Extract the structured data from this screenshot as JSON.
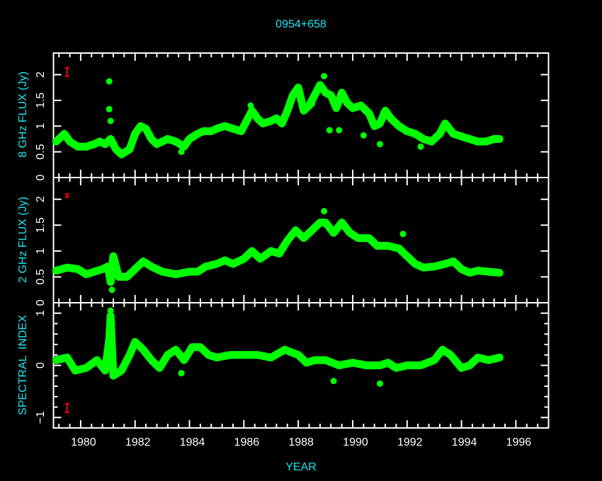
{
  "chart_data": [
    {
      "type": "scatter",
      "title": "0954+658",
      "xlabel": "",
      "ylabel": "8 GHz FLUX (Jy)",
      "xlim": [
        1979.0,
        1997.2
      ],
      "ylim": [
        0,
        2.42
      ],
      "yticks": [
        "0",
        "0.5",
        "1",
        "1.5",
        "2"
      ],
      "ytick_values": [
        0,
        0.5,
        1,
        1.5,
        2
      ],
      "grid": false,
      "marker_color": "#00ff00",
      "error_bar": {
        "x": 1979.5,
        "y": 2.05,
        "err": 0.08,
        "color": "#ff0000"
      },
      "x": [
        1979.1,
        1979.4,
        1979.6,
        1979.9,
        1980.2,
        1980.5,
        1980.7,
        1980.9,
        1981.1,
        1981.3,
        1981.5,
        1981.8,
        1982.0,
        1982.2,
        1982.4,
        1982.6,
        1982.8,
        1983.0,
        1983.2,
        1983.5,
        1983.8,
        1984.0,
        1984.3,
        1984.5,
        1984.8,
        1985.0,
        1985.3,
        1985.6,
        1985.9,
        1986.1,
        1986.3,
        1986.5,
        1986.7,
        1987.0,
        1987.2,
        1987.4,
        1987.6,
        1987.8,
        1988.0,
        1988.2,
        1988.4,
        1988.6,
        1988.8,
        1989.0,
        1989.2,
        1989.4,
        1989.6,
        1989.8,
        1990.0,
        1990.3,
        1990.6,
        1990.8,
        1991.0,
        1991.2,
        1991.4,
        1991.7,
        1992.0,
        1992.3,
        1992.6,
        1992.9,
        1993.2,
        1993.4,
        1993.7,
        1994.0,
        1994.3,
        1994.6,
        1994.9,
        1995.2,
        1995.4,
        1981.05,
        1981.05,
        1981.1,
        1983.7,
        1986.25,
        1988.5,
        1988.95,
        1989.15,
        1989.5,
        1990.4,
        1991.0,
        1992.5
      ],
      "y": [
        0.7,
        0.85,
        0.7,
        0.6,
        0.6,
        0.65,
        0.7,
        0.65,
        0.75,
        0.55,
        0.45,
        0.55,
        0.85,
        1.0,
        0.95,
        0.75,
        0.65,
        0.7,
        0.75,
        0.7,
        0.6,
        0.75,
        0.85,
        0.9,
        0.9,
        0.95,
        1.0,
        0.95,
        0.9,
        1.1,
        1.3,
        1.15,
        1.05,
        1.1,
        1.15,
        1.05,
        1.3,
        1.6,
        1.75,
        1.3,
        1.4,
        1.6,
        1.8,
        1.65,
        1.6,
        1.35,
        1.65,
        1.45,
        1.35,
        1.4,
        1.25,
        1.0,
        1.05,
        1.3,
        1.15,
        1.0,
        0.9,
        0.85,
        0.75,
        0.7,
        0.85,
        1.05,
        0.85,
        0.8,
        0.75,
        0.7,
        0.7,
        0.75,
        0.75,
        1.87,
        1.33,
        1.1,
        0.5,
        1.4,
        1.43,
        1.97,
        0.92,
        0.92,
        0.82,
        0.65,
        0.6
      ]
    },
    {
      "type": "scatter",
      "xlabel": "",
      "ylabel": "2 GHz FLUX (Jy)",
      "xlim": [
        1979.0,
        1997.2
      ],
      "ylim": [
        0,
        2.42
      ],
      "yticks": [
        "0",
        "0.5",
        "1",
        "1.5",
        "2"
      ],
      "ytick_values": [
        0,
        0.5,
        1,
        1.5,
        2
      ],
      "grid": false,
      "marker_color": "#00ff00",
      "error_bar": {
        "x": 1979.5,
        "y": 2.07,
        "err": 0.03,
        "color": "#ff0000"
      },
      "x": [
        1979.1,
        1979.5,
        1979.9,
        1980.2,
        1980.5,
        1980.8,
        1981.0,
        1981.1,
        1981.2,
        1981.4,
        1981.7,
        1982.0,
        1982.3,
        1982.6,
        1983.0,
        1983.5,
        1984.0,
        1984.3,
        1984.6,
        1985.0,
        1985.3,
        1985.6,
        1986.0,
        1986.3,
        1986.6,
        1987.0,
        1987.3,
        1987.6,
        1987.9,
        1988.2,
        1988.5,
        1988.8,
        1989.0,
        1989.3,
        1989.6,
        1989.9,
        1990.2,
        1990.6,
        1990.9,
        1991.3,
        1991.7,
        1992.0,
        1992.3,
        1992.6,
        1993.0,
        1993.4,
        1993.7,
        1994.0,
        1994.3,
        1994.6,
        1995.0,
        1995.4,
        1981.15,
        1988.95,
        1991.85
      ],
      "y": [
        0.62,
        0.68,
        0.65,
        0.55,
        0.6,
        0.65,
        0.7,
        0.4,
        0.9,
        0.5,
        0.5,
        0.65,
        0.8,
        0.7,
        0.6,
        0.55,
        0.6,
        0.6,
        0.7,
        0.75,
        0.82,
        0.75,
        0.85,
        1.0,
        0.85,
        1.0,
        0.95,
        1.2,
        1.4,
        1.25,
        1.4,
        1.55,
        1.55,
        1.35,
        1.55,
        1.35,
        1.25,
        1.25,
        1.1,
        1.1,
        1.05,
        0.9,
        0.75,
        0.68,
        0.7,
        0.75,
        0.8,
        0.65,
        0.58,
        0.62,
        0.6,
        0.58,
        0.25,
        1.77,
        1.33
      ]
    },
    {
      "type": "scatter",
      "xlabel": "YEAR",
      "ylabel": "SPECTRAL  INDEX",
      "xlim": [
        1979.0,
        1997.2
      ],
      "ylim": [
        -1.2,
        1.2
      ],
      "yticks": [
        "−1",
        "0",
        "1"
      ],
      "ytick_values": [
        -1,
        0,
        1
      ],
      "xticks": [
        "1980",
        "1982",
        "1984",
        "1986",
        "1988",
        "1990",
        "1992",
        "1994",
        "1996"
      ],
      "xtick_values": [
        1980,
        1982,
        1984,
        1986,
        1988,
        1990,
        1992,
        1994,
        1996
      ],
      "grid": false,
      "marker_color": "#00ff00",
      "error_bar": {
        "x": 1979.5,
        "y": -0.82,
        "err": 0.08,
        "color": "#ff0000"
      },
      "x": [
        1979.1,
        1979.5,
        1979.8,
        1980.2,
        1980.6,
        1980.9,
        1981.05,
        1981.1,
        1981.2,
        1981.5,
        1981.8,
        1982.0,
        1982.3,
        1982.6,
        1982.9,
        1983.2,
        1983.5,
        1983.8,
        1984.1,
        1984.4,
        1984.7,
        1985.0,
        1985.5,
        1986.0,
        1986.5,
        1987.0,
        1987.5,
        1988.0,
        1988.3,
        1988.6,
        1989.0,
        1989.5,
        1990.0,
        1990.5,
        1991.0,
        1991.3,
        1991.6,
        1992.0,
        1992.5,
        1993.0,
        1993.3,
        1993.6,
        1994.0,
        1994.3,
        1994.6,
        1995.0,
        1995.4,
        1981.1,
        1981.15,
        1989.3,
        1991.0,
        1983.7
      ],
      "y": [
        0.1,
        0.15,
        -0.1,
        -0.05,
        0.1,
        -0.1,
        0.5,
        0.95,
        -0.2,
        -0.1,
        0.2,
        0.45,
        0.3,
        0.1,
        -0.05,
        0.2,
        0.3,
        0.1,
        0.35,
        0.35,
        0.2,
        0.15,
        0.2,
        0.2,
        0.2,
        0.15,
        0.3,
        0.2,
        0.05,
        0.1,
        0.1,
        0.0,
        0.05,
        0.0,
        0.0,
        0.05,
        -0.05,
        0.0,
        0.0,
        0.1,
        0.3,
        0.2,
        -0.05,
        0.0,
        0.15,
        0.1,
        0.15,
        1.05,
        0.8,
        -0.3,
        -0.35,
        -0.15
      ]
    }
  ]
}
